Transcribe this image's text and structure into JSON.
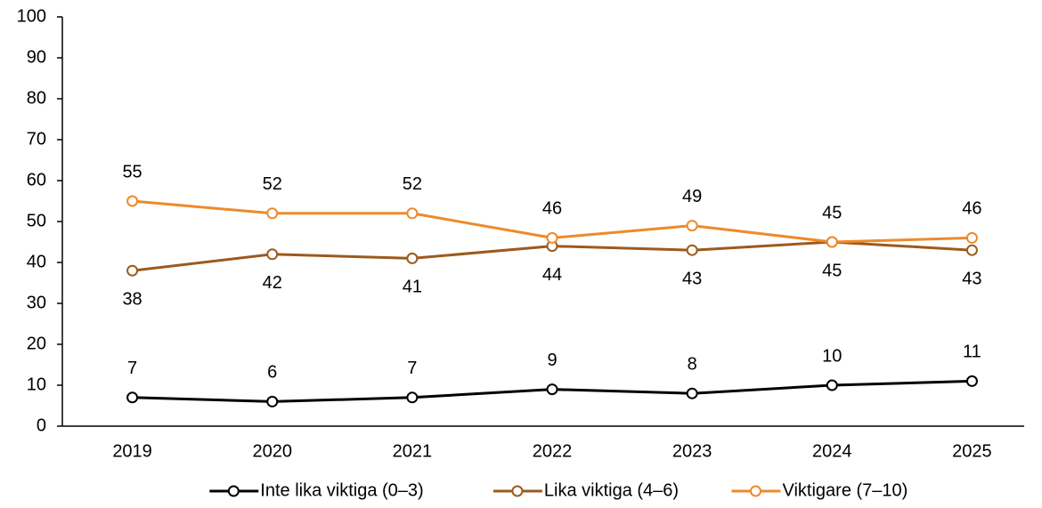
{
  "chart_data": {
    "type": "line",
    "categories": [
      "2019",
      "2020",
      "2021",
      "2022",
      "2023",
      "2024",
      "2025"
    ],
    "series": [
      {
        "name": "Inte lika viktiga (0–3)",
        "color": "#000000",
        "values": [
          7,
          6,
          7,
          9,
          8,
          10,
          11
        ]
      },
      {
        "name": "Lika viktiga (4–6)",
        "color": "#9c5a1c",
        "values": [
          38,
          42,
          41,
          44,
          43,
          45,
          43
        ]
      },
      {
        "name": "Viktigare (7–10)",
        "color": "#ee8a2a",
        "values": [
          55,
          52,
          52,
          46,
          49,
          45,
          46
        ]
      }
    ],
    "ylim": [
      0,
      100
    ],
    "yticks": [
      0,
      10,
      20,
      30,
      40,
      50,
      60,
      70,
      80,
      90,
      100
    ],
    "grid": false,
    "legend": "bottom"
  }
}
